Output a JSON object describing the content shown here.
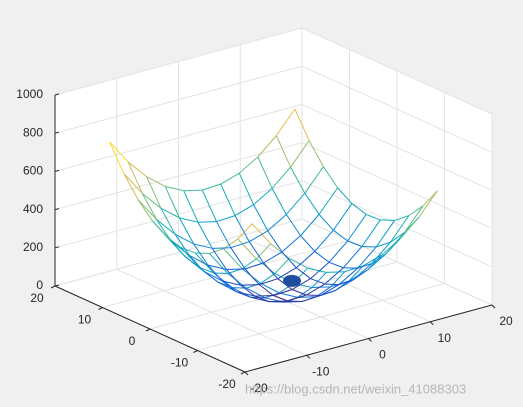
{
  "chart_data": {
    "type": "mesh",
    "x": [
      -15,
      -12,
      -9,
      -6,
      -3,
      0,
      3,
      6,
      9,
      12,
      15
    ],
    "y": [
      -15,
      -12,
      -9,
      -6,
      -3,
      0,
      3,
      6,
      9,
      12,
      15
    ],
    "z": [
      [
        676,
        545,
        442,
        365,
        316,
        293,
        298,
        329,
        388,
        473,
        586
      ],
      [
        563,
        432,
        329,
        252,
        203,
        180,
        185,
        216,
        275,
        360,
        473
      ],
      [
        478,
        347,
        244,
        167,
        118,
        95,
        100,
        131,
        190,
        275,
        388
      ],
      [
        419,
        288,
        185,
        108,
        59,
        36,
        41,
        72,
        131,
        216,
        329
      ],
      [
        388,
        257,
        154,
        77,
        28,
        5,
        10,
        41,
        100,
        185,
        298
      ],
      [
        383,
        252,
        149,
        72,
        23,
        0,
        5,
        36,
        95,
        180,
        293
      ],
      [
        406,
        275,
        172,
        95,
        46,
        23,
        28,
        59,
        118,
        203,
        316
      ],
      [
        455,
        324,
        221,
        144,
        95,
        72,
        77,
        108,
        167,
        252,
        365
      ],
      [
        532,
        401,
        298,
        221,
        172,
        149,
        154,
        185,
        244,
        329,
        442
      ],
      [
        635,
        504,
        401,
        324,
        275,
        252,
        257,
        288,
        347,
        432,
        545
      ],
      [
        766,
        635,
        532,
        455,
        406,
        383,
        388,
        419,
        478,
        563,
        676
      ]
    ],
    "points": {
      "x": [
        3
      ],
      "y": [
        0
      ],
      "z": [
        50
      ],
      "color": "#1f4e9e"
    },
    "xlim": [
      -20,
      20
    ],
    "ylim": [
      -20,
      20
    ],
    "zlim": [
      0,
      1000
    ],
    "xticks": [
      -20,
      -10,
      0,
      10,
      20
    ],
    "yticks": [
      -20,
      -10,
      0,
      10,
      20
    ],
    "zticks": [
      0,
      200,
      400,
      600,
      800,
      1000
    ],
    "grid": true,
    "colormap": [
      "#352a87",
      "#0f5cdd",
      "#127dd8",
      "#079ccf",
      "#15b1b4",
      "#59bd8c",
      "#a5be6b",
      "#e1b952",
      "#fcce2e",
      "#f9fb0e"
    ],
    "watermark": "https://blog.csdn.net/weixin_41088303"
  }
}
